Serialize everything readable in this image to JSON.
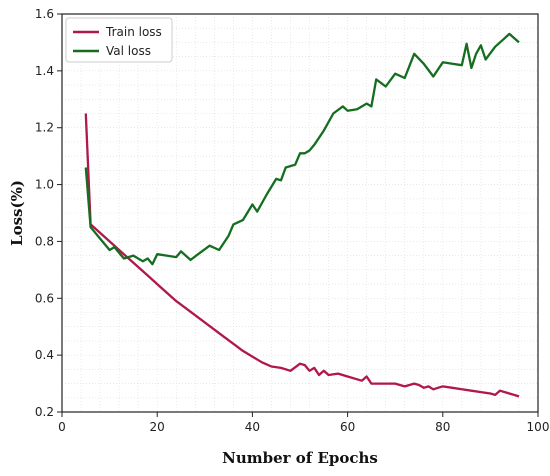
{
  "chart_data": {
    "type": "line",
    "title": "",
    "xlabel": "Number of Epochs",
    "ylabel": "Loss(%)",
    "xlim": [
      0,
      100
    ],
    "ylim": [
      0.2,
      1.6
    ],
    "xticks": [
      0,
      20,
      40,
      60,
      80,
      100
    ],
    "yticks": [
      0.2,
      0.4,
      0.6,
      0.8,
      1.0,
      1.2,
      1.4,
      1.6
    ],
    "grid": true,
    "legend_position": "top-left",
    "series": [
      {
        "name": "Train loss",
        "color": "#b0174a",
        "x": [
          5,
          6,
          8,
          10,
          12,
          14,
          16,
          18,
          20,
          22,
          24,
          26,
          28,
          30,
          32,
          34,
          36,
          38,
          40,
          42,
          44,
          46,
          48,
          50,
          51,
          52,
          53,
          54,
          55,
          56,
          58,
          60,
          62,
          63,
          64,
          65,
          66,
          68,
          70,
          72,
          74,
          75,
          76,
          77,
          78,
          79,
          80,
          82,
          84,
          86,
          88,
          90,
          91,
          92,
          94,
          96
        ],
        "y": [
          1.25,
          0.86,
          0.83,
          0.8,
          0.77,
          0.74,
          0.71,
          0.68,
          0.65,
          0.62,
          0.59,
          0.565,
          0.54,
          0.515,
          0.49,
          0.465,
          0.44,
          0.415,
          0.395,
          0.375,
          0.36,
          0.355,
          0.345,
          0.37,
          0.365,
          0.345,
          0.355,
          0.33,
          0.345,
          0.33,
          0.335,
          0.325,
          0.315,
          0.31,
          0.325,
          0.3,
          0.3,
          0.3,
          0.3,
          0.29,
          0.3,
          0.295,
          0.285,
          0.29,
          0.28,
          0.285,
          0.29,
          0.285,
          0.28,
          0.275,
          0.27,
          0.265,
          0.26,
          0.275,
          0.265,
          0.255
        ]
      },
      {
        "name": "Val loss",
        "color": "#156e1f",
        "x": [
          5,
          6,
          8,
          10,
          11,
          12,
          13,
          15,
          17,
          18,
          19,
          20,
          22,
          24,
          25,
          27,
          29,
          31,
          33,
          35,
          36,
          38,
          40,
          41,
          43,
          45,
          46,
          47,
          49,
          50,
          51,
          52,
          53,
          55,
          57,
          59,
          60,
          62,
          64,
          65,
          66,
          68,
          70,
          72,
          74,
          76,
          78,
          80,
          82,
          84,
          85,
          86,
          87,
          88,
          89,
          91,
          93,
          94,
          96
        ],
        "y": [
          1.06,
          0.85,
          0.81,
          0.77,
          0.78,
          0.76,
          0.74,
          0.75,
          0.73,
          0.74,
          0.72,
          0.755,
          0.75,
          0.745,
          0.765,
          0.735,
          0.76,
          0.785,
          0.77,
          0.82,
          0.86,
          0.875,
          0.93,
          0.905,
          0.965,
          1.02,
          1.015,
          1.06,
          1.07,
          1.11,
          1.11,
          1.12,
          1.14,
          1.19,
          1.25,
          1.275,
          1.26,
          1.265,
          1.285,
          1.275,
          1.37,
          1.345,
          1.39,
          1.375,
          1.46,
          1.425,
          1.38,
          1.43,
          1.425,
          1.42,
          1.495,
          1.41,
          1.46,
          1.49,
          1.44,
          1.485,
          1.515,
          1.53,
          1.5
        ]
      }
    ]
  }
}
